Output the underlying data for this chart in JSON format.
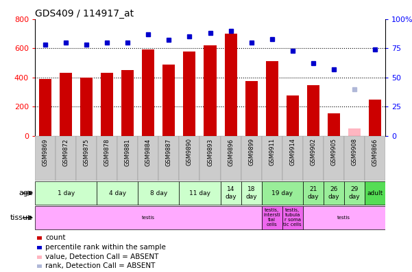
{
  "title": "GDS409 / 114917_at",
  "samples": [
    "GSM9869",
    "GSM9872",
    "GSM9875",
    "GSM9878",
    "GSM9881",
    "GSM9884",
    "GSM9887",
    "GSM9890",
    "GSM9893",
    "GSM9896",
    "GSM9899",
    "GSM9911",
    "GSM9914",
    "GSM9902",
    "GSM9905",
    "GSM9908",
    "GSM9866"
  ],
  "bar_values": [
    390,
    430,
    400,
    430,
    450,
    590,
    490,
    580,
    620,
    700,
    375,
    510,
    275,
    350,
    155,
    50,
    250
  ],
  "bar_absent": [
    false,
    false,
    false,
    false,
    false,
    false,
    false,
    false,
    false,
    false,
    false,
    false,
    false,
    false,
    false,
    true,
    false
  ],
  "dot_values": [
    78,
    80,
    78,
    80,
    80,
    87,
    82,
    85,
    88,
    90,
    80,
    83,
    73,
    62,
    57,
    40,
    74
  ],
  "dot_absent": [
    false,
    false,
    false,
    false,
    false,
    false,
    false,
    false,
    false,
    false,
    false,
    false,
    false,
    false,
    false,
    true,
    false
  ],
  "bar_color": "#cc0000",
  "bar_absent_color": "#ffb6c1",
  "dot_color": "#0000cc",
  "dot_absent_color": "#b0b8d8",
  "left_ylim": [
    0,
    800
  ],
  "right_ylim": [
    0,
    100
  ],
  "left_yticks": [
    0,
    200,
    400,
    600,
    800
  ],
  "right_yticks": [
    0,
    25,
    50,
    75,
    100
  ],
  "right_yticklabels": [
    "0",
    "25",
    "50",
    "75",
    "100%"
  ],
  "age_groups": [
    {
      "label": "1 day",
      "samples": [
        "GSM9869",
        "GSM9872",
        "GSM9875"
      ],
      "color": "#ccffcc"
    },
    {
      "label": "4 day",
      "samples": [
        "GSM9878",
        "GSM9881"
      ],
      "color": "#ccffcc"
    },
    {
      "label": "8 day",
      "samples": [
        "GSM9884",
        "GSM9887"
      ],
      "color": "#ccffcc"
    },
    {
      "label": "11 day",
      "samples": [
        "GSM9890",
        "GSM9893"
      ],
      "color": "#ccffcc"
    },
    {
      "label": "14\nday",
      "samples": [
        "GSM9896"
      ],
      "color": "#ccffcc"
    },
    {
      "label": "18\nday",
      "samples": [
        "GSM9899"
      ],
      "color": "#ccffcc"
    },
    {
      "label": "19 day",
      "samples": [
        "GSM9911",
        "GSM9914"
      ],
      "color": "#99ee99"
    },
    {
      "label": "21\nday",
      "samples": [
        "GSM9902"
      ],
      "color": "#99ee99"
    },
    {
      "label": "26\nday",
      "samples": [
        "GSM9905"
      ],
      "color": "#99ee99"
    },
    {
      "label": "29\nday",
      "samples": [
        "GSM9908"
      ],
      "color": "#99ee99"
    },
    {
      "label": "adult",
      "samples": [
        "GSM9866"
      ],
      "color": "#55dd55"
    }
  ],
  "tissue_groups": [
    {
      "label": "testis",
      "samples": [
        "GSM9869",
        "GSM9872",
        "GSM9875",
        "GSM9878",
        "GSM9881",
        "GSM9884",
        "GSM9887",
        "GSM9890",
        "GSM9893",
        "GSM9896",
        "GSM9899"
      ],
      "color": "#ffaaff"
    },
    {
      "label": "testis,\nintersti\ntial\ncells",
      "samples": [
        "GSM9911"
      ],
      "color": "#ee66ee"
    },
    {
      "label": "testis,\ntubula\nr soma\ntic cells",
      "samples": [
        "GSM9914"
      ],
      "color": "#ee66ee"
    },
    {
      "label": "testis",
      "samples": [
        "GSM9902",
        "GSM9905",
        "GSM9908",
        "GSM9866"
      ],
      "color": "#ffaaff"
    }
  ],
  "legend_labels": [
    "count",
    "percentile rank within the sample",
    "value, Detection Call = ABSENT",
    "rank, Detection Call = ABSENT"
  ],
  "legend_colors": [
    "#cc0000",
    "#0000cc",
    "#ffb6c1",
    "#b0b8d8"
  ]
}
